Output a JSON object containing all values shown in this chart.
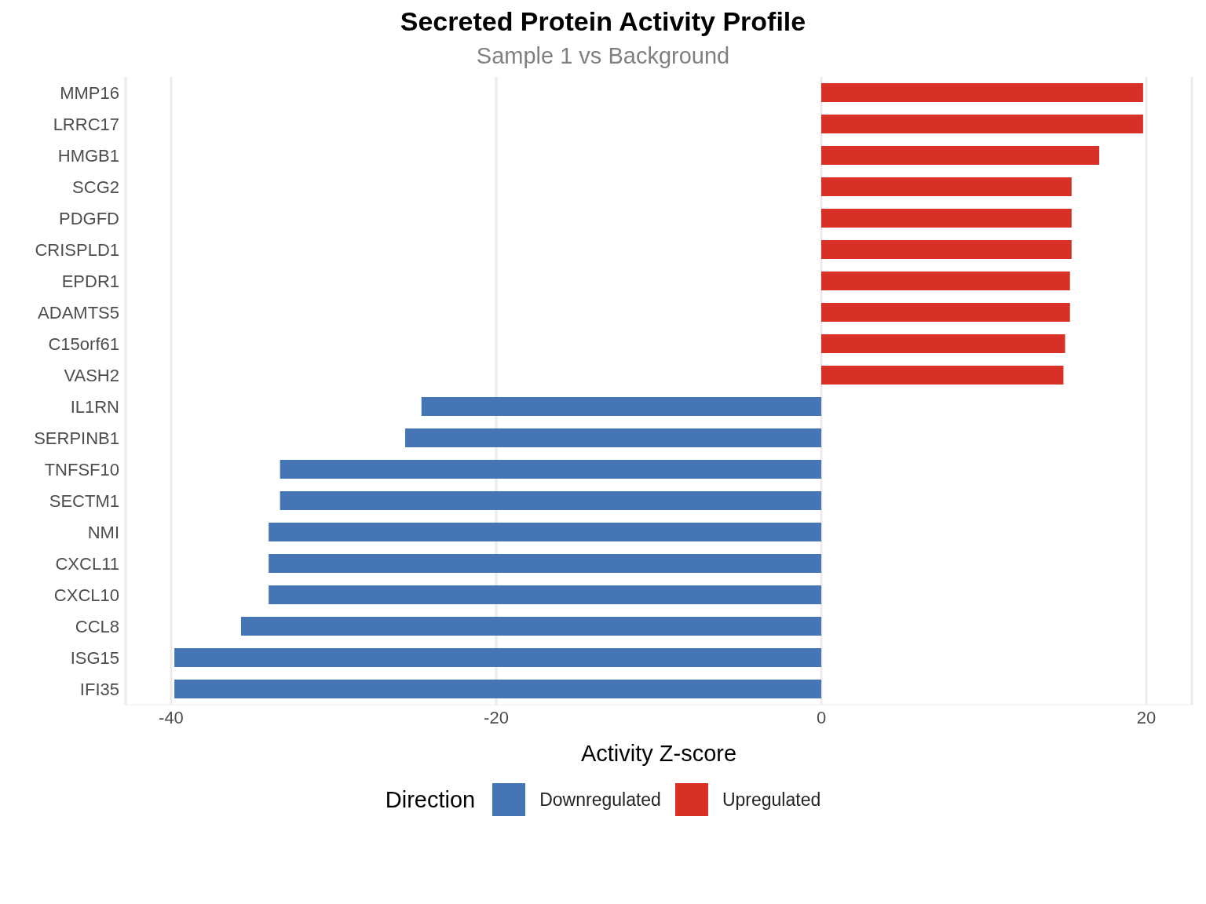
{
  "chart_data": {
    "type": "bar",
    "orientation": "horizontal",
    "stacked": true,
    "title": "Secreted Protein Activity Profile",
    "subtitle": "Sample 1 vs Background",
    "xlabel": "Activity Z-score",
    "legend_title": "Direction",
    "categories": [
      "MMP16",
      "LRRC17",
      "HMGB1",
      "SCG2",
      "PDGFD",
      "CRISPLD1",
      "EPDR1",
      "ADAMTS5",
      "C15orf61",
      "VASH2",
      "IL1RN",
      "SERPINB1",
      "TNFSF10",
      "SECTM1",
      "NMI",
      "CXCL11",
      "CXCL10",
      "CCL8",
      "ISG15",
      "IFI35"
    ],
    "series": [
      {
        "name": "Downregulated",
        "color": "#4575b4",
        "values": [
          null,
          null,
          null,
          null,
          null,
          null,
          null,
          null,
          null,
          null,
          -24.6,
          -25.6,
          -33.3,
          -33.3,
          -34.0,
          -34.0,
          -34.0,
          -35.7,
          -39.8,
          -39.8
        ]
      },
      {
        "name": "Upregulated",
        "color": "#d73027",
        "values": [
          19.8,
          19.8,
          17.1,
          15.4,
          15.4,
          15.4,
          15.3,
          15.3,
          15.0,
          14.9,
          null,
          null,
          null,
          null,
          null,
          null,
          null,
          null,
          null,
          null
        ]
      }
    ],
    "xlim": [
      -42.8,
      22.8
    ],
    "xticks": [
      -40,
      -20,
      0,
      20
    ],
    "grid": "x",
    "legend": "bottom"
  }
}
